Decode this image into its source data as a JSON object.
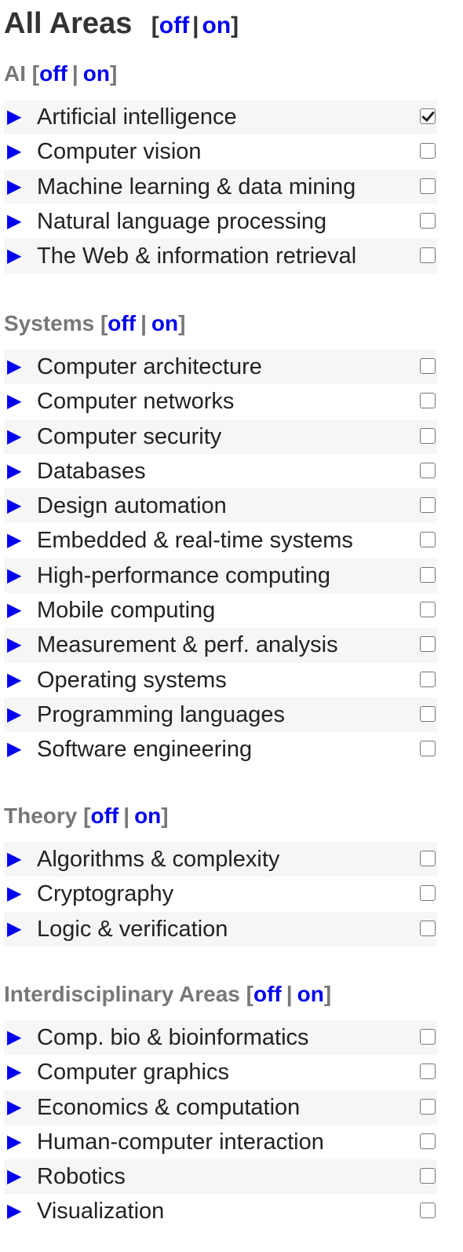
{
  "header": {
    "title": "All Areas",
    "toggle": {
      "open": "[",
      "off": "off",
      "sep": "|",
      "on": "on",
      "close": "]"
    }
  },
  "sections": [
    {
      "title": "AI",
      "items": [
        {
          "label": "Artificial intelligence",
          "checked": true
        },
        {
          "label": "Computer vision",
          "checked": false
        },
        {
          "label": "Machine learning & data mining",
          "checked": false
        },
        {
          "label": "Natural language processing",
          "checked": false
        },
        {
          "label": "The Web & information retrieval",
          "checked": false
        }
      ]
    },
    {
      "title": "Systems",
      "items": [
        {
          "label": "Computer architecture",
          "checked": false
        },
        {
          "label": "Computer networks",
          "checked": false
        },
        {
          "label": "Computer security",
          "checked": false
        },
        {
          "label": "Databases",
          "checked": false
        },
        {
          "label": "Design automation",
          "checked": false
        },
        {
          "label": "Embedded & real-time systems",
          "checked": false
        },
        {
          "label": "High-performance computing",
          "checked": false
        },
        {
          "label": "Mobile computing",
          "checked": false
        },
        {
          "label": "Measurement & perf. analysis",
          "checked": false
        },
        {
          "label": "Operating systems",
          "checked": false
        },
        {
          "label": "Programming languages",
          "checked": false
        },
        {
          "label": "Software engineering",
          "checked": false
        }
      ]
    },
    {
      "title": "Theory",
      "items": [
        {
          "label": "Algorithms & complexity",
          "checked": false
        },
        {
          "label": "Cryptography",
          "checked": false
        },
        {
          "label": "Logic & verification",
          "checked": false
        }
      ]
    },
    {
      "title": "Interdisciplinary Areas",
      "items": [
        {
          "label": "Comp. bio & bioinformatics",
          "checked": false
        },
        {
          "label": "Computer graphics",
          "checked": false
        },
        {
          "label": "Economics & computation",
          "checked": false
        },
        {
          "label": "Human-computer interaction",
          "checked": false
        },
        {
          "label": "Robotics",
          "checked": false
        },
        {
          "label": "Visualization",
          "checked": false
        }
      ]
    }
  ],
  "icons": {
    "expand": "triangle-right-icon",
    "expand_glyph": "▶"
  },
  "colors": {
    "link": "#0000ee",
    "heading": "#777777",
    "row_alt": "#f6f6f6"
  }
}
